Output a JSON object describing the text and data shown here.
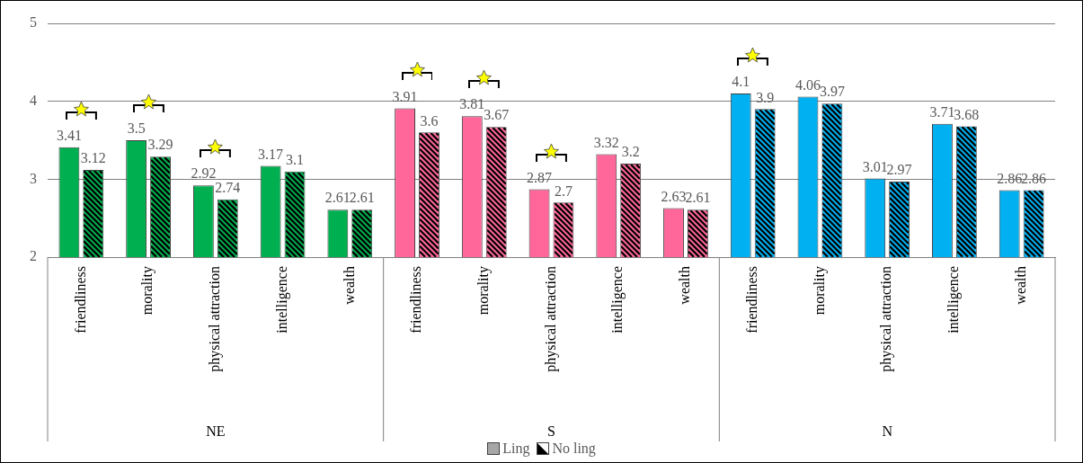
{
  "chart_data": {
    "type": "bar",
    "categories": [
      "friendliness",
      "morality",
      "physical attraction",
      "intelligence",
      "wealth",
      "friendliness",
      "morality",
      "physical attraction",
      "intelligence",
      "wealth",
      "friendliness",
      "morality",
      "physical attraction",
      "intelligence",
      "wealth"
    ],
    "series": [
      {
        "name": "Ling",
        "color": "#a6a6a6",
        "colors": [
          "#00b050",
          "#00b050",
          "#00b050",
          "#00b050",
          "#00b050",
          "#ff6699",
          "#ff6699",
          "#ff6699",
          "#ff6699",
          "#ff6699",
          "#00b0f0",
          "#00b0f0",
          "#00b0f0",
          "#00b0f0",
          "#00b0f0"
        ],
        "values": [
          3.41,
          3.5,
          2.92,
          3.17,
          2.61,
          3.91,
          3.81,
          2.87,
          3.32,
          2.63,
          4.1,
          4.06,
          3.01,
          3.71,
          2.86
        ]
      },
      {
        "name": "No ling",
        "color": "#000000",
        "colors": [
          "#00b050",
          "#00b050",
          "#00b050",
          "#00b050",
          "#00b050",
          "#ff6699",
          "#ff6699",
          "#ff6699",
          "#ff6699",
          "#ff6699",
          "#00b0f0",
          "#00b0f0",
          "#00b0f0",
          "#00b0f0",
          "#00b0f0"
        ],
        "values": [
          3.12,
          3.29,
          2.74,
          3.1,
          2.61,
          3.6,
          3.67,
          2.7,
          3.2,
          2.61,
          3.9,
          3.97,
          2.97,
          3.68,
          2.86
        ]
      }
    ],
    "annotations": [
      "NE",
      "S",
      "N"
    ],
    "ylim": [
      2,
      5
    ],
    "yticks": [
      2,
      3,
      4,
      5
    ],
    "grid": "y",
    "data_labels": true,
    "legend": "bottom"
  }
}
